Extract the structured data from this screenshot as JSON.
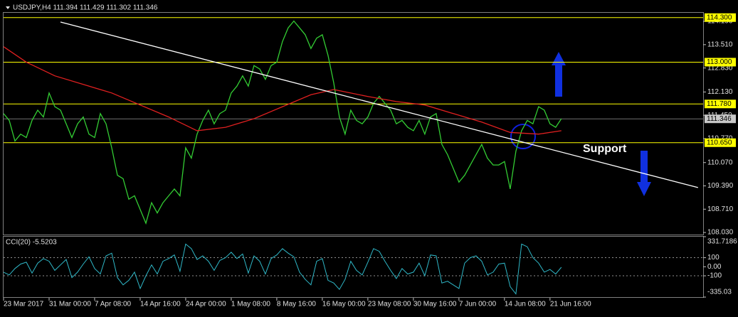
{
  "chart_data": [
    {
      "type": "line",
      "title": "USDJPY,H4  111.394 111.429 111.302 111.346",
      "annotation": "Support",
      "xlim": [
        0,
        122.9
      ],
      "xticks": [
        {
          "value": 0,
          "label": "23 Mar 2017"
        },
        {
          "value": 8,
          "label": "31 Mar 00:00"
        },
        {
          "value": 16,
          "label": "7 Apr 08:00"
        },
        {
          "value": 24,
          "label": "14 Apr 16:00"
        },
        {
          "value": 32,
          "label": "24 Apr 00:00"
        },
        {
          "value": 40,
          "label": "1 May 08:00"
        },
        {
          "value": 48,
          "label": "8 May 16:00"
        },
        {
          "value": 56,
          "label": "16 May 00:00"
        },
        {
          "value": 64,
          "label": "23 May 08:00"
        },
        {
          "value": 72,
          "label": "30 May 16:00"
        },
        {
          "value": 80,
          "label": "7 Jun 00:00"
        },
        {
          "value": 88,
          "label": "14 Jun 08:00"
        },
        {
          "value": 96,
          "label": "21 Jun 16:00"
        }
      ],
      "ylim": [
        107.97,
        114.44
      ],
      "yticks": [
        {
          "value": 114.19,
          "label": "114.190"
        },
        {
          "value": 113.51,
          "label": "113.510"
        },
        {
          "value": 112.83,
          "label": "112.830"
        },
        {
          "value": 112.13,
          "label": "112.130"
        },
        {
          "value": 111.45,
          "label": "111.450"
        },
        {
          "value": 110.77,
          "label": "110.770"
        },
        {
          "value": 110.07,
          "label": "110.070"
        },
        {
          "value": 109.39,
          "label": "109.390"
        },
        {
          "value": 108.71,
          "label": "108.710"
        },
        {
          "value": 108.03,
          "label": "108.030"
        }
      ],
      "hlines": [
        {
          "value": 114.3,
          "label": "114.300"
        },
        {
          "value": 113.0,
          "label": "113.000"
        },
        {
          "value": 111.78,
          "label": "111.780"
        },
        {
          "value": 110.65,
          "label": "110.650"
        }
      ],
      "hline_color": "#ffff00",
      "last_price": {
        "value": 111.346,
        "label": "111.346"
      },
      "series": [
        {
          "color": "#33cc33",
          "x": [
            0,
            1,
            2,
            3,
            4,
            5,
            6,
            7,
            8,
            9,
            10,
            11,
            12,
            13,
            14,
            15,
            16,
            17,
            18,
            19,
            20,
            21,
            22,
            23,
            24,
            25,
            26,
            27,
            28,
            29,
            30,
            31,
            32,
            33,
            34,
            35,
            36,
            37,
            38,
            39,
            40,
            41,
            42,
            43,
            44,
            45,
            46,
            47,
            48,
            49,
            50,
            51,
            52,
            53,
            54,
            55,
            56,
            57,
            58,
            59,
            60,
            61,
            62,
            63,
            64,
            65,
            66,
            67,
            68,
            69,
            70,
            71,
            72,
            73,
            74,
            75,
            76,
            77,
            78,
            79,
            80,
            81,
            82,
            83,
            84,
            85,
            86,
            87,
            88,
            89,
            90,
            91,
            92,
            93,
            94,
            95,
            96,
            97,
            98
          ],
          "values": [
            111.5,
            111.3,
            110.7,
            110.9,
            110.8,
            111.3,
            111.6,
            111.4,
            112.1,
            111.7,
            111.6,
            111.2,
            110.8,
            111.2,
            111.4,
            110.9,
            110.8,
            111.5,
            111.2,
            110.5,
            109.7,
            109.6,
            109.0,
            109.1,
            108.7,
            108.3,
            108.9,
            108.6,
            108.9,
            109.1,
            109.3,
            109.1,
            110.5,
            110.2,
            110.9,
            111.3,
            111.6,
            111.2,
            111.5,
            111.6,
            112.1,
            112.3,
            112.6,
            112.3,
            112.9,
            112.8,
            112.5,
            112.9,
            113.0,
            113.6,
            114.0,
            114.2,
            114.0,
            113.8,
            113.4,
            113.7,
            113.8,
            113.2,
            112.4,
            111.4,
            110.9,
            111.6,
            111.3,
            111.2,
            111.4,
            111.8,
            112.0,
            111.8,
            111.6,
            111.2,
            111.3,
            111.1,
            111.0,
            111.3,
            110.9,
            111.4,
            111.5,
            110.6,
            110.3,
            109.9,
            109.5,
            109.7,
            110.0,
            110.3,
            110.6,
            110.2,
            110.0,
            110.0,
            110.1,
            109.3,
            110.4,
            111.0,
            111.3,
            111.2,
            111.7,
            111.6,
            111.2,
            111.1,
            111.35
          ]
        },
        {
          "color": "#e02020",
          "x": [
            0,
            4,
            9,
            19,
            29,
            34,
            39,
            44,
            49,
            54,
            58,
            64,
            69,
            74,
            79,
            84,
            89,
            94,
            98
          ],
          "values": [
            113.45,
            113.0,
            112.6,
            112.1,
            111.4,
            111.0,
            111.1,
            111.35,
            111.7,
            112.05,
            112.2,
            112.0,
            111.85,
            111.75,
            111.5,
            111.25,
            110.95,
            110.9,
            111.0
          ]
        },
        {
          "color": "#ffffff",
          "x": [
            10,
            122
          ],
          "values": [
            114.17,
            109.34
          ]
        }
      ]
    },
    {
      "type": "line",
      "title": "CCI(20) -5.5203",
      "ylim": [
        -335.03,
        331.7186
      ],
      "yticks": [
        331.7186,
        100,
        {
          "value": 0,
          "label": "0.00"
        },
        -100,
        -335.03
      ],
      "levels": [
        100,
        -100
      ],
      "color": "#2fb8c8",
      "values": [
        -60,
        -90,
        -20,
        30,
        50,
        -70,
        40,
        90,
        60,
        -40,
        20,
        80,
        -120,
        -60,
        30,
        110,
        -20,
        -80,
        120,
        150,
        -120,
        -200,
        -150,
        -60,
        -240,
        -100,
        20,
        -80,
        60,
        90,
        130,
        -50,
        250,
        200,
        80,
        120,
        60,
        -40,
        70,
        100,
        160,
        90,
        140,
        -70,
        120,
        60,
        -80,
        90,
        130,
        200,
        150,
        110,
        -60,
        -140,
        -200,
        60,
        90,
        -150,
        -180,
        -250,
        -140,
        60,
        -40,
        -90,
        50,
        200,
        170,
        60,
        -40,
        -130,
        -20,
        -80,
        -60,
        40,
        -100,
        130,
        120,
        -180,
        -160,
        -200,
        -240,
        40,
        100,
        120,
        60,
        -90,
        -60,
        30,
        40,
        -220,
        -300,
        250,
        220,
        100,
        40,
        -60,
        -30,
        -80,
        -5.5203
      ]
    }
  ]
}
